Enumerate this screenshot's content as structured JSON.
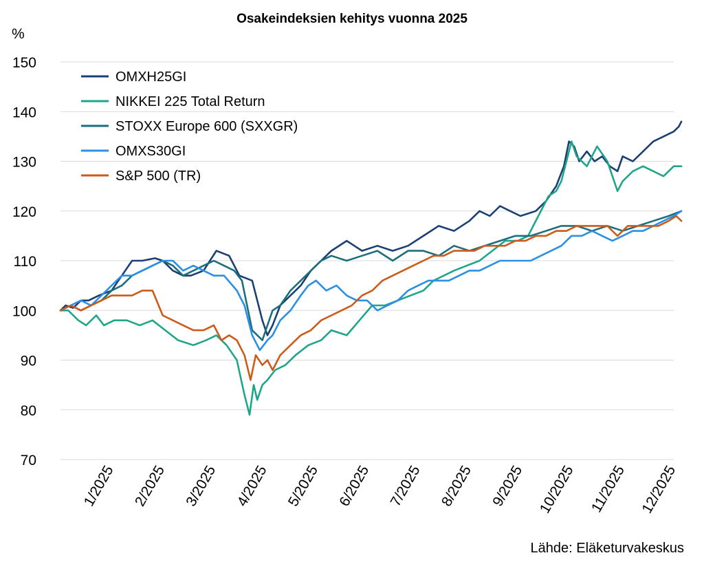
{
  "chart_data": {
    "type": "line",
    "title": "Osakeindeksien kehitys vuonna 2025",
    "ylabel": "%",
    "xlabel": "",
    "ylim": [
      70,
      150
    ],
    "yticks": [
      70,
      80,
      90,
      100,
      110,
      120,
      130,
      140,
      150
    ],
    "xlim": [
      0,
      12
    ],
    "xtick_positions": [
      1,
      2,
      3,
      4,
      5,
      6,
      7,
      8,
      9,
      10,
      11,
      12
    ],
    "xtick_labels": [
      "1/2025",
      "2/2025",
      "3/2025",
      "4/2025",
      "5/2025",
      "6/2025",
      "7/2025",
      "8/2025",
      "9/2025",
      "10/2025",
      "11/2025",
      "12/2025"
    ],
    "grid": "horizontal",
    "legend_position": "top-left",
    "source": "Lähde: Eläketurvakeskus",
    "series": [
      {
        "name": "OMXH25GI",
        "color": "#1b3f73",
        "x": [
          0,
          0.1,
          0.25,
          0.4,
          0.55,
          0.75,
          1.0,
          1.2,
          1.4,
          1.6,
          1.85,
          2.0,
          2.2,
          2.4,
          2.55,
          2.8,
          3.05,
          3.3,
          3.5,
          3.75,
          3.95,
          4.05,
          4.15,
          4.3,
          4.5,
          4.7,
          4.9,
          5.1,
          5.3,
          5.6,
          5.9,
          6.2,
          6.5,
          6.8,
          7.1,
          7.4,
          7.7,
          8.0,
          8.2,
          8.4,
          8.6,
          8.8,
          9.0,
          9.3,
          9.5,
          9.7,
          9.85,
          9.95,
          10.05,
          10.15,
          10.3,
          10.45,
          10.6,
          10.75,
          10.9,
          11.0,
          11.2,
          11.4,
          11.6,
          11.8,
          12.0,
          12.1,
          12.15
        ],
        "values": [
          100,
          101,
          100.5,
          102,
          102,
          103,
          104,
          107,
          110,
          110,
          110.5,
          110,
          108,
          107,
          107,
          108,
          112,
          111,
          107,
          106,
          98,
          95,
          97,
          101,
          103,
          105,
          108,
          110,
          112,
          114,
          112,
          113,
          112,
          113,
          115,
          117,
          116,
          118,
          120,
          119,
          121,
          120,
          119,
          120,
          122,
          125,
          129,
          134,
          133,
          130,
          132,
          130,
          131,
          129,
          128,
          131,
          130,
          132,
          134,
          135,
          136,
          137,
          138
        ]
      },
      {
        "name": "NIKKEI 225 Total Return",
        "color": "#1fa589",
        "x": [
          0,
          0.15,
          0.35,
          0.5,
          0.7,
          0.85,
          1.05,
          1.3,
          1.55,
          1.8,
          2.05,
          2.3,
          2.6,
          2.85,
          3.05,
          3.25,
          3.45,
          3.6,
          3.7,
          3.78,
          3.85,
          3.95,
          4.05,
          4.2,
          4.4,
          4.6,
          4.85,
          5.1,
          5.3,
          5.6,
          5.85,
          6.1,
          6.35,
          6.6,
          6.85,
          7.1,
          7.3,
          7.5,
          7.7,
          7.95,
          8.2,
          8.45,
          8.7,
          8.95,
          9.15,
          9.35,
          9.55,
          9.7,
          9.8,
          9.9,
          10.0,
          10.1,
          10.3,
          10.5,
          10.7,
          10.9,
          11.0,
          11.2,
          11.4,
          11.6,
          11.8,
          12.0,
          12.15
        ],
        "values": [
          100,
          100,
          98,
          97,
          99,
          97,
          98,
          98,
          97,
          98,
          96,
          94,
          93,
          94,
          95,
          93,
          90,
          83,
          79,
          85,
          82,
          85,
          86,
          88,
          89,
          91,
          93,
          94,
          96,
          95,
          98,
          101,
          101,
          102,
          103,
          104,
          106,
          107,
          108,
          109,
          110,
          112,
          114,
          114,
          115,
          119,
          123,
          124,
          126,
          130,
          134,
          131,
          129,
          133,
          130,
          124,
          126,
          128,
          129,
          128,
          127,
          129,
          129
        ]
      },
      {
        "name": "STOXX Europe 600 (SXXGR)",
        "color": "#1b6f7d",
        "x": [
          0,
          0.2,
          0.4,
          0.6,
          0.8,
          1.0,
          1.2,
          1.4,
          1.6,
          1.8,
          2.0,
          2.2,
          2.4,
          2.6,
          2.8,
          3.0,
          3.2,
          3.4,
          3.55,
          3.75,
          3.95,
          4.05,
          4.15,
          4.3,
          4.5,
          4.7,
          4.9,
          5.1,
          5.3,
          5.6,
          5.9,
          6.2,
          6.5,
          6.8,
          7.1,
          7.4,
          7.7,
          8.0,
          8.3,
          8.6,
          8.9,
          9.2,
          9.5,
          9.8,
          10.1,
          10.4,
          10.7,
          11.0,
          11.3,
          11.6,
          11.9,
          12.15
        ],
        "values": [
          100,
          101,
          100,
          101,
          102,
          104,
          105,
          107,
          108,
          109,
          110,
          109,
          107,
          108,
          109,
          110,
          109,
          108,
          106,
          96,
          94,
          97,
          100,
          101,
          104,
          106,
          108,
          110,
          111,
          110,
          111,
          112,
          110,
          112,
          112,
          111,
          113,
          112,
          113,
          114,
          115,
          115,
          116,
          117,
          117,
          116,
          117,
          116,
          117,
          118,
          119,
          120
        ]
      },
      {
        "name": "OMXS30GI",
        "color": "#2a8fe5",
        "x": [
          0,
          0.2,
          0.4,
          0.6,
          0.8,
          1.0,
          1.2,
          1.4,
          1.6,
          1.8,
          2.0,
          2.2,
          2.4,
          2.6,
          2.8,
          3.0,
          3.2,
          3.45,
          3.6,
          3.75,
          3.9,
          4.05,
          4.15,
          4.3,
          4.5,
          4.7,
          4.85,
          5.0,
          5.2,
          5.4,
          5.6,
          5.8,
          6.0,
          6.2,
          6.4,
          6.6,
          6.8,
          7.0,
          7.2,
          7.4,
          7.6,
          7.8,
          8.0,
          8.2,
          8.4,
          8.6,
          8.8,
          9.0,
          9.2,
          9.4,
          9.6,
          9.8,
          10.0,
          10.2,
          10.4,
          10.6,
          10.8,
          11.0,
          11.2,
          11.4,
          11.6,
          11.8,
          12.0,
          12.15
        ],
        "values": [
          100,
          101,
          102,
          101,
          103,
          105,
          107,
          107,
          108,
          109,
          110,
          110,
          108,
          109,
          108,
          107,
          107,
          104,
          101,
          95,
          92,
          94,
          95,
          98,
          100,
          103,
          105,
          106,
          104,
          105,
          103,
          102,
          102,
          100,
          101,
          102,
          104,
          105,
          106,
          106,
          106,
          107,
          108,
          108,
          109,
          110,
          110,
          110,
          110,
          111,
          112,
          113,
          115,
          115,
          116,
          115,
          114,
          115,
          116,
          116,
          117,
          118,
          119,
          120
        ]
      },
      {
        "name": "S&P 500 (TR)",
        "color": "#cc5b1a",
        "x": [
          0,
          0.2,
          0.4,
          0.6,
          0.8,
          1.0,
          1.2,
          1.4,
          1.6,
          1.8,
          2.0,
          2.2,
          2.4,
          2.6,
          2.8,
          3.0,
          3.15,
          3.3,
          3.45,
          3.6,
          3.72,
          3.82,
          3.95,
          4.05,
          4.15,
          4.3,
          4.5,
          4.7,
          4.9,
          5.1,
          5.3,
          5.5,
          5.7,
          5.9,
          6.1,
          6.3,
          6.5,
          6.7,
          6.9,
          7.1,
          7.3,
          7.5,
          7.7,
          7.9,
          8.1,
          8.3,
          8.5,
          8.7,
          8.9,
          9.1,
          9.3,
          9.5,
          9.7,
          9.9,
          10.1,
          10.3,
          10.5,
          10.7,
          10.9,
          11.1,
          11.3,
          11.5,
          11.7,
          11.9,
          12.05,
          12.15
        ],
        "values": [
          100,
          101,
          100,
          101,
          102,
          103,
          103,
          103,
          104,
          104,
          99,
          98,
          97,
          96,
          96,
          97,
          94,
          95,
          94,
          91,
          86,
          91,
          89,
          90,
          88,
          91,
          93,
          95,
          96,
          98,
          99,
          100,
          101,
          103,
          104,
          106,
          107,
          108,
          109,
          110,
          111,
          111,
          112,
          112,
          112,
          113,
          113,
          113,
          114,
          114,
          115,
          115,
          116,
          116,
          117,
          117,
          117,
          117,
          115,
          117,
          117,
          117,
          117,
          118,
          119,
          118
        ]
      }
    ]
  }
}
